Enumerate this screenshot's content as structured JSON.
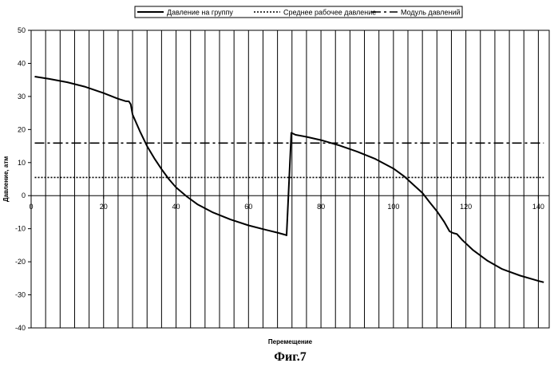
{
  "chart_data": {
    "type": "line",
    "xlabel": "Перемещение",
    "ylabel": "Давление, атм",
    "caption": "Фиг.7",
    "xlim": [
      0,
      143
    ],
    "ylim": [
      -40,
      50
    ],
    "xticks": [
      0,
      20,
      40,
      60,
      80,
      100,
      120,
      140
    ],
    "yticks": [
      -40,
      -30,
      -20,
      -10,
      0,
      10,
      20,
      30,
      40,
      50
    ],
    "grid": {
      "vertical": true,
      "horizontal": false,
      "x_step": 4
    },
    "legend_position": "top",
    "series": [
      {
        "name": "Давление на группу",
        "style": "solid",
        "color": "#000000",
        "points": [
          [
            1,
            36
          ],
          [
            5,
            35.3
          ],
          [
            10,
            34.3
          ],
          [
            15,
            32.9
          ],
          [
            20,
            31
          ],
          [
            24,
            29.3
          ],
          [
            26,
            28.6
          ],
          [
            27,
            28.5
          ],
          [
            27.5,
            27.6
          ],
          [
            28,
            24.5
          ],
          [
            30,
            19.5
          ],
          [
            32,
            15
          ],
          [
            34,
            11.3
          ],
          [
            36,
            8
          ],
          [
            38,
            5
          ],
          [
            40,
            2.5
          ],
          [
            43,
            -0.3
          ],
          [
            46,
            -2.7
          ],
          [
            50,
            -5
          ],
          [
            55,
            -7.2
          ],
          [
            60,
            -9
          ],
          [
            65,
            -10.4
          ],
          [
            68,
            -11.2
          ],
          [
            70,
            -11.8
          ],
          [
            70.5,
            -12
          ],
          [
            71.8,
            19
          ],
          [
            73,
            18.4
          ],
          [
            76,
            17.8
          ],
          [
            80,
            16.8
          ],
          [
            85,
            15.2
          ],
          [
            90,
            13.3
          ],
          [
            95,
            11.1
          ],
          [
            100,
            8.2
          ],
          [
            103,
            5.8
          ],
          [
            106,
            2.8
          ],
          [
            108,
            0.8
          ],
          [
            110,
            -2
          ],
          [
            112,
            -4.7
          ],
          [
            114,
            -7.9
          ],
          [
            115.5,
            -10.8
          ],
          [
            116.5,
            -11.3
          ],
          [
            117.5,
            -11.6
          ],
          [
            119,
            -13.4
          ],
          [
            122,
            -16.5
          ],
          [
            126,
            -19.7
          ],
          [
            130,
            -22.2
          ],
          [
            135,
            -24.2
          ],
          [
            140,
            -25.8
          ],
          [
            141.5,
            -26.2
          ]
        ]
      },
      {
        "name": "Среднее рабочее давление",
        "style": "dotted",
        "color": "#000000",
        "points": [
          [
            1,
            5.5
          ],
          [
            141.5,
            5.5
          ]
        ]
      },
      {
        "name": "Модуль давлений",
        "style": "dash-dot",
        "color": "#000000",
        "points": [
          [
            1,
            15.9
          ],
          [
            141.5,
            15.9
          ]
        ]
      }
    ]
  }
}
